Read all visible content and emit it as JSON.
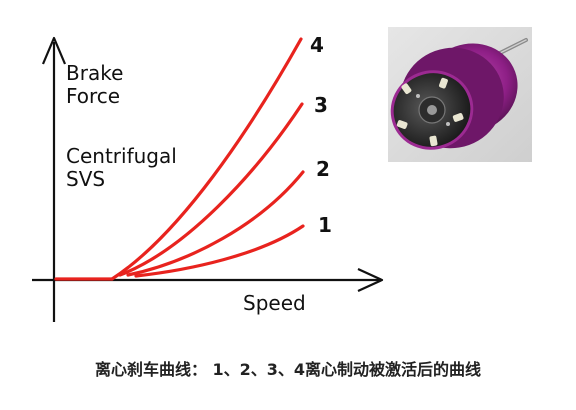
{
  "diagram": {
    "y_label_lines": [
      "Brake",
      "Force"
    ],
    "note_lines": [
      "Centrifugal",
      "SVS"
    ],
    "x_label": "Speed",
    "curves": [
      {
        "label": "1",
        "level": 1
      },
      {
        "label": "2",
        "level": 2
      },
      {
        "label": "3",
        "level": 3
      },
      {
        "label": "4",
        "level": 4
      }
    ],
    "curve_color": "#e8231e",
    "axis_color": "#111111",
    "photo": {
      "subject": "spool-with-centrifugal-brake-photo",
      "body_color": "#8e1f86",
      "background_color": "#d9d9d9"
    }
  },
  "caption": "离心刹车曲线： 1、2、3、4离心制动被激活后的曲线"
}
